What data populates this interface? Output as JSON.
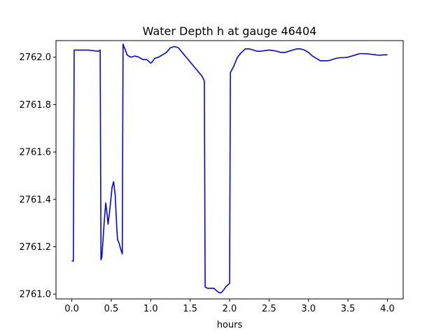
{
  "chart_data": {
    "type": "line",
    "title": "Water Depth h at gauge 46404",
    "xlabel": "hours",
    "ylabel": "",
    "xlim": [
      -0.2,
      4.2
    ],
    "ylim": [
      2760.98,
      2762.07
    ],
    "x_ticks": [
      0.0,
      0.5,
      1.0,
      1.5,
      2.0,
      2.5,
      3.0,
      3.5,
      4.0
    ],
    "x_tick_labels": [
      "0.0",
      "0.5",
      "1.0",
      "1.5",
      "2.0",
      "2.5",
      "3.0",
      "3.5",
      "4.0"
    ],
    "y_ticks": [
      2761.0,
      2761.2,
      2761.4,
      2761.6,
      2761.8,
      2762.0
    ],
    "y_tick_labels": [
      "2761.0",
      "2761.2",
      "2761.4",
      "2761.6",
      "2761.8",
      "2762.0"
    ],
    "grid": false,
    "series": [
      {
        "color": "#0000ff",
        "x": [
          0.0,
          0.02,
          0.03,
          0.2,
          0.34,
          0.36,
          0.37,
          0.38,
          0.39,
          0.41,
          0.43,
          0.45,
          0.46,
          0.48,
          0.51,
          0.53,
          0.55,
          0.57,
          0.58,
          0.6,
          0.62,
          0.64,
          0.65,
          0.66,
          0.68,
          0.7,
          0.72,
          0.75,
          0.8,
          0.85,
          0.9,
          0.95,
          1.0,
          1.02,
          1.05,
          1.1,
          1.15,
          1.2,
          1.25,
          1.3,
          1.35,
          1.4,
          1.45,
          1.5,
          1.55,
          1.6,
          1.65,
          1.68,
          1.69,
          1.72,
          1.8,
          1.85,
          1.88,
          1.9,
          1.93,
          1.95,
          1.98,
          2.0,
          2.01,
          2.05,
          2.1,
          2.15,
          2.2,
          2.25,
          2.3,
          2.35,
          2.4,
          2.45,
          2.5,
          2.55,
          2.6,
          2.65,
          2.7,
          2.75,
          2.8,
          2.85,
          2.9,
          2.95,
          3.0,
          3.05,
          3.1,
          3.15,
          3.2,
          3.25,
          3.3,
          3.35,
          3.4,
          3.45,
          3.5,
          3.55,
          3.6,
          3.65,
          3.7,
          3.75,
          3.8,
          3.85,
          3.9,
          3.95,
          4.0
        ],
        "y": [
          2761.14,
          2761.14,
          2762.03,
          2762.03,
          2762.025,
          2762.03,
          2761.145,
          2761.155,
          2761.2,
          2761.3,
          2761.385,
          2761.33,
          2761.295,
          2761.35,
          2761.45,
          2761.475,
          2761.42,
          2761.28,
          2761.23,
          2761.215,
          2761.19,
          2761.17,
          2762.055,
          2762.045,
          2762.03,
          2762.01,
          2762.005,
          2762.0,
          2762.005,
          2762.0,
          2761.99,
          2761.99,
          2761.975,
          2761.98,
          2761.995,
          2762.0,
          2762.01,
          2762.02,
          2762.04,
          2762.045,
          2762.04,
          2762.02,
          2762.0,
          2761.98,
          2761.96,
          2761.94,
          2761.92,
          2761.9,
          2761.03,
          2761.025,
          2761.025,
          2761.01,
          2761.005,
          2761.008,
          2761.02,
          2761.03,
          2761.04,
          2761.045,
          2761.935,
          2761.96,
          2762.0,
          2762.02,
          2762.035,
          2762.035,
          2762.03,
          2762.025,
          2762.025,
          2762.028,
          2762.03,
          2762.028,
          2762.025,
          2762.02,
          2762.02,
          2762.025,
          2762.03,
          2762.035,
          2762.035,
          2762.03,
          2762.02,
          2762.005,
          2761.995,
          2761.985,
          2761.985,
          2761.985,
          2761.99,
          2761.995,
          2761.998,
          2761.998,
          2762.0,
          2762.005,
          2762.01,
          2762.015,
          2762.015,
          2762.014,
          2762.012,
          2762.01,
          2762.008,
          2762.01,
          2762.01
        ]
      }
    ]
  }
}
